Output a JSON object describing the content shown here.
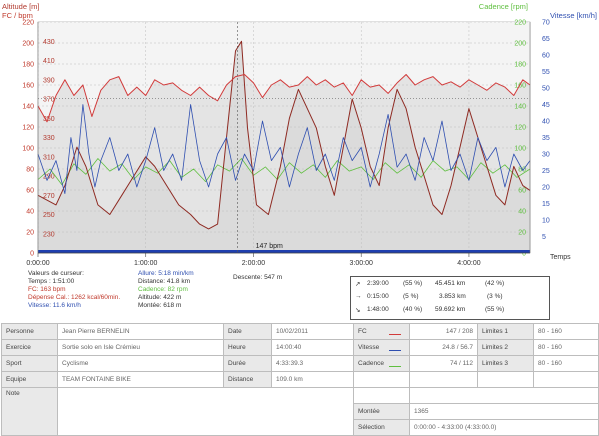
{
  "chart_data": {
    "type": "line",
    "x_unit_label": "Temps",
    "x_ticks": [
      "0:00:00",
      "1:00:00",
      "2:00:00",
      "3:00:00",
      "4:00:00"
    ],
    "xlim_seconds": [
      0,
      16440
    ],
    "axes": {
      "fc": {
        "title": "FC / bpm",
        "ticks": [
          "0",
          "20",
          "40",
          "60",
          "80",
          "100",
          "120",
          "140",
          "160",
          "180",
          "200",
          "220"
        ],
        "range": [
          0,
          220
        ],
        "color": "#c0392b"
      },
      "altitude": {
        "title": "Altitude [m]",
        "ticks": [
          "230",
          "250",
          "270",
          "290",
          "310",
          "330",
          "350",
          "370",
          "390",
          "410",
          "430"
        ],
        "range": [
          210,
          450
        ],
        "color": "#b23a2f"
      },
      "cadence": {
        "title": "Cadence [rpm]",
        "ticks": [
          "0",
          "20",
          "40",
          "60",
          "80",
          "100",
          "120",
          "140",
          "160",
          "180",
          "200",
          "220"
        ],
        "color": "#5fbf3f"
      },
      "vitesse": {
        "title": "Vitesse [km/h]",
        "ticks": [
          "5",
          "10",
          "15",
          "20",
          "25",
          "30",
          "35",
          "40",
          "45",
          "50",
          "55",
          "60",
          "65",
          "70"
        ],
        "range": [
          0,
          70
        ],
        "color": "#2f4fb0"
      }
    },
    "reference_line_label": "147 bpm",
    "reference_fc": 147,
    "series": [
      {
        "name": "FC",
        "color": "#d23b3b",
        "points": [
          [
            0,
            140
          ],
          [
            300,
            125
          ],
          [
            600,
            150
          ],
          [
            900,
            165
          ],
          [
            1200,
            150
          ],
          [
            1500,
            160
          ],
          [
            1800,
            130
          ],
          [
            2100,
            155
          ],
          [
            2400,
            165
          ],
          [
            2700,
            168
          ],
          [
            3000,
            150
          ],
          [
            3300,
            158
          ],
          [
            3600,
            150
          ],
          [
            3900,
            165
          ],
          [
            4200,
            160
          ],
          [
            4500,
            162
          ],
          [
            4800,
            155
          ],
          [
            5100,
            150
          ],
          [
            5400,
            158
          ],
          [
            5700,
            150
          ],
          [
            6000,
            145
          ],
          [
            6300,
            160
          ],
          [
            6600,
            168
          ],
          [
            6900,
            170
          ],
          [
            7200,
            162
          ],
          [
            7500,
            148
          ],
          [
            7800,
            160
          ],
          [
            8100,
            165
          ],
          [
            8400,
            158
          ],
          [
            8700,
            160
          ],
          [
            9000,
            168
          ],
          [
            9300,
            160
          ],
          [
            9600,
            165
          ],
          [
            9900,
            158
          ],
          [
            10200,
            162
          ],
          [
            10500,
            150
          ],
          [
            10800,
            165
          ],
          [
            11100,
            158
          ],
          [
            11400,
            160
          ],
          [
            11700,
            152
          ],
          [
            12000,
            162
          ],
          [
            12300,
            170
          ],
          [
            12600,
            160
          ],
          [
            12900,
            165
          ],
          [
            13200,
            168
          ],
          [
            13500,
            160
          ],
          [
            13800,
            163
          ],
          [
            14100,
            158
          ],
          [
            14400,
            165
          ],
          [
            14700,
            160
          ],
          [
            15000,
            155
          ],
          [
            15300,
            162
          ],
          [
            15600,
            158
          ],
          [
            15900,
            150
          ],
          [
            16200,
            165
          ],
          [
            16440,
            160
          ]
        ]
      },
      {
        "name": "Altitude",
        "color": "#8e2a22",
        "points": [
          [
            0,
            270
          ],
          [
            600,
            260
          ],
          [
            900,
            280
          ],
          [
            1300,
            320
          ],
          [
            1600,
            300
          ],
          [
            2000,
            260
          ],
          [
            2400,
            250
          ],
          [
            2800,
            270
          ],
          [
            3200,
            290
          ],
          [
            3600,
            310
          ],
          [
            3900,
            300
          ],
          [
            4300,
            280
          ],
          [
            4700,
            260
          ],
          [
            5100,
            250
          ],
          [
            5400,
            240
          ],
          [
            5700,
            235
          ],
          [
            6000,
            240
          ],
          [
            6300,
            330
          ],
          [
            6600,
            420
          ],
          [
            6800,
            430
          ],
          [
            7000,
            340
          ],
          [
            7300,
            260
          ],
          [
            7700,
            250
          ],
          [
            8100,
            300
          ],
          [
            8400,
            350
          ],
          [
            8700,
            380
          ],
          [
            9000,
            360
          ],
          [
            9300,
            340
          ],
          [
            9600,
            300
          ],
          [
            9900,
            270
          ],
          [
            10200,
            320
          ],
          [
            10500,
            370
          ],
          [
            10800,
            340
          ],
          [
            11100,
            300
          ],
          [
            11400,
            280
          ],
          [
            11700,
            340
          ],
          [
            12000,
            380
          ],
          [
            12300,
            360
          ],
          [
            12600,
            320
          ],
          [
            12900,
            290
          ],
          [
            13200,
            260
          ],
          [
            13500,
            250
          ],
          [
            13800,
            280
          ],
          [
            14100,
            320
          ],
          [
            14400,
            360
          ],
          [
            14700,
            330
          ],
          [
            15000,
            300
          ],
          [
            15300,
            270
          ],
          [
            15600,
            260
          ],
          [
            15900,
            300
          ],
          [
            16200,
            280
          ],
          [
            16440,
            275
          ]
        ]
      },
      {
        "name": "Vitesse",
        "color": "#2f4fb0",
        "points": [
          [
            0,
            30
          ],
          [
            300,
            22
          ],
          [
            600,
            28
          ],
          [
            900,
            18
          ],
          [
            1100,
            35
          ],
          [
            1300,
            25
          ],
          [
            1500,
            45
          ],
          [
            1700,
            30
          ],
          [
            1900,
            20
          ],
          [
            2100,
            28
          ],
          [
            2400,
            35
          ],
          [
            2700,
            25
          ],
          [
            3000,
            30
          ],
          [
            3300,
            20
          ],
          [
            3600,
            28
          ],
          [
            3900,
            38
          ],
          [
            4200,
            25
          ],
          [
            4500,
            30
          ],
          [
            4800,
            22
          ],
          [
            5100,
            45
          ],
          [
            5400,
            28
          ],
          [
            5700,
            20
          ],
          [
            6000,
            30
          ],
          [
            6300,
            35
          ],
          [
            6600,
            22
          ],
          [
            6900,
            30
          ],
          [
            7200,
            25
          ],
          [
            7500,
            40
          ],
          [
            7800,
            28
          ],
          [
            8100,
            32
          ],
          [
            8400,
            20
          ],
          [
            8700,
            30
          ],
          [
            9000,
            38
          ],
          [
            9300,
            25
          ],
          [
            9600,
            30
          ],
          [
            9900,
            22
          ],
          [
            10200,
            35
          ],
          [
            10500,
            28
          ],
          [
            10800,
            32
          ],
          [
            11100,
            20
          ],
          [
            11400,
            30
          ],
          [
            11700,
            42
          ],
          [
            12000,
            26
          ],
          [
            12300,
            30
          ],
          [
            12600,
            22
          ],
          [
            12900,
            35
          ],
          [
            13200,
            28
          ],
          [
            13500,
            40
          ],
          [
            13800,
            25
          ],
          [
            14100,
            30
          ],
          [
            14400,
            22
          ],
          [
            14700,
            35
          ],
          [
            15000,
            28
          ],
          [
            15300,
            32
          ],
          [
            15600,
            20
          ],
          [
            15900,
            30
          ],
          [
            16200,
            25
          ],
          [
            16440,
            28
          ]
        ]
      },
      {
        "name": "Cadence",
        "color": "#5fbf3f",
        "points": [
          [
            0,
            70
          ],
          [
            400,
            80
          ],
          [
            800,
            65
          ],
          [
            1200,
            85
          ],
          [
            1600,
            75
          ],
          [
            2000,
            90
          ],
          [
            2400,
            78
          ],
          [
            2800,
            85
          ],
          [
            3200,
            70
          ],
          [
            3600,
            82
          ],
          [
            4000,
            76
          ],
          [
            4400,
            88
          ],
          [
            4800,
            72
          ],
          [
            5200,
            80
          ],
          [
            5600,
            68
          ],
          [
            6000,
            84
          ],
          [
            6400,
            78
          ],
          [
            6800,
            90
          ],
          [
            7200,
            74
          ],
          [
            7600,
            82
          ],
          [
            8000,
            70
          ],
          [
            8400,
            86
          ],
          [
            8800,
            76
          ],
          [
            9200,
            84
          ],
          [
            9600,
            72
          ],
          [
            10000,
            88
          ],
          [
            10400,
            78
          ],
          [
            10800,
            82
          ],
          [
            11200,
            70
          ],
          [
            11600,
            86
          ],
          [
            12000,
            76
          ],
          [
            12400,
            84
          ],
          [
            12800,
            72
          ],
          [
            13200,
            88
          ],
          [
            13600,
            78
          ],
          [
            14000,
            82
          ],
          [
            14400,
            70
          ],
          [
            14800,
            86
          ],
          [
            15200,
            76
          ],
          [
            15600,
            84
          ],
          [
            16000,
            72
          ],
          [
            16440,
            80
          ]
        ]
      }
    ]
  },
  "cursor": {
    "header": "Valeurs de curseur:",
    "temps": "Temps : 1:51:00",
    "fc": "FC: 163 bpm",
    "depense": "Dépense Cal.: 1262 kcal/60min.",
    "vitesse": "Vitesse: 11.6 km/h",
    "allure": "Allure: 5:18 min/km",
    "distance": "Distance: 41.8 km",
    "cadence": "Cadence: 82 rpm",
    "altitude": "Altitude: 422 m",
    "montee": "Montée: 618 m",
    "descente": "Descente: 547 m"
  },
  "splits": [
    {
      "symbol": "↗",
      "time": "2:39:00",
      "pct": "(55 %)",
      "dist": "45.451 km",
      "pct2": "(42 %)"
    },
    {
      "symbol": "→",
      "time": "0:15:00",
      "pct": "(5 %)",
      "dist": "3.853 km",
      "pct2": "(3 %)"
    },
    {
      "symbol": "↘",
      "time": "1:48:00",
      "pct": "(40 %)",
      "dist": "59.692 km",
      "pct2": "(55 %)"
    }
  ],
  "info": {
    "personne_label": "Personne",
    "personne": "Jean Pierre BERNELIN",
    "exercice_label": "Exercice",
    "exercice": "Sortie solo en Isle Crémieu",
    "sport_label": "Sport",
    "sport": "Cyclisme",
    "equipe_label": "Equipe",
    "equipe": "TEAM FONTAINE BIKE",
    "note_label": "Note",
    "date_label": "Date",
    "date": "10/02/2011",
    "heure_label": "Heure",
    "heure": "14:00:40",
    "duree_label": "Durée",
    "duree": "4:33:39.3",
    "distance_label": "Distance",
    "distance": "109.0 km",
    "fc_label": "FC",
    "fc": "147 / 208",
    "vitesse_label": "Vitesse",
    "vitesse": "24.8 / 56.7",
    "cadence_label": "Cadence",
    "cadence": "74 / 112",
    "limites1_label": "Limites 1",
    "limites1": "80 - 160",
    "limites2_label": "Limites 2",
    "limites2": "80 - 160",
    "limites3_label": "Limites 3",
    "limites3": "80 - 160",
    "montee_label": "Montée",
    "montee": "1365",
    "selection_label": "Sélection",
    "selection": "0:00:00 - 4:33:00 (4:33:00.0)",
    "fc_color": "#d23b3b",
    "vitesse_color": "#2f4fb0",
    "cadence_color": "#5fbf3f"
  }
}
